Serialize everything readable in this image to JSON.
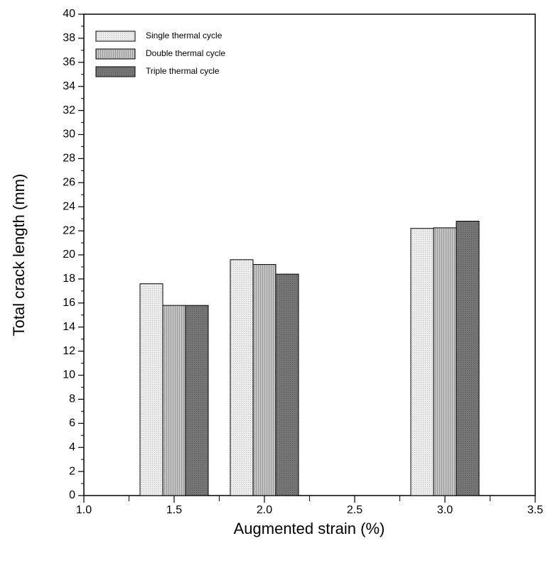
{
  "chart_data": {
    "type": "bar",
    "x_label": "Augmented strain (%)",
    "y_label": "Total crack length (mm)",
    "x": [
      1.5,
      2.0,
      3.0
    ],
    "series": [
      {
        "name": "Single thermal cycle",
        "color": "#ececec",
        "values": [
          17.6,
          19.6,
          22.2
        ]
      },
      {
        "name": "Double thermal cycle",
        "color": "#c4c4c4",
        "values": [
          15.8,
          19.2,
          22.25
        ]
      },
      {
        "name": "Triple thermal cycle",
        "color": "#767676",
        "values": [
          15.8,
          18.4,
          22.8
        ]
      }
    ],
    "xlim": [
      1.0,
      3.5
    ],
    "xticks": [
      {
        "value": 1.0,
        "label": "1.0"
      },
      {
        "value": 1.5,
        "label": "1.5"
      },
      {
        "value": 2.0,
        "label": "2.0"
      },
      {
        "value": 2.5,
        "label": "2.5"
      },
      {
        "value": 3.0,
        "label": "3.0"
      },
      {
        "value": 3.5,
        "label": "3.5"
      }
    ],
    "xminorticks": [
      1.25,
      1.75,
      2.25,
      2.75,
      3.25
    ],
    "ylim": [
      0,
      40
    ],
    "yticks": [
      0,
      2,
      4,
      6,
      8,
      10,
      12,
      14,
      16,
      18,
      20,
      22,
      24,
      26,
      28,
      30,
      32,
      34,
      36,
      38,
      40
    ],
    "yminorticks": [
      1,
      3,
      5,
      7,
      9,
      11,
      13,
      15,
      17,
      19,
      21,
      23,
      25,
      27,
      29,
      31,
      33,
      35,
      37,
      39
    ],
    "grid": false,
    "legend": "upper-left"
  }
}
